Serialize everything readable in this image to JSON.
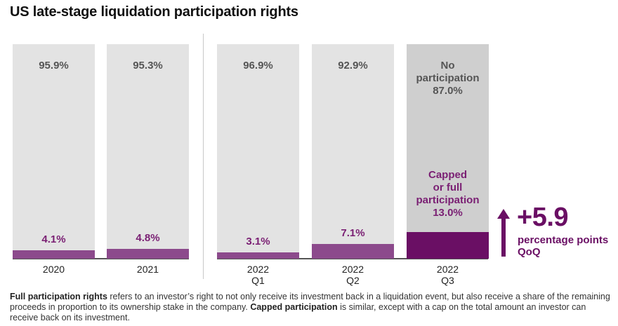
{
  "title": "US late-stage liquidation participation rights",
  "chart_data": {
    "type": "bar",
    "stacked": true,
    "categories": [
      "2020",
      "2021",
      "2022 Q1",
      "2022 Q2",
      "2022 Q3"
    ],
    "category_labels": [
      [
        "2020"
      ],
      [
        "2021"
      ],
      [
        "2022",
        "Q1"
      ],
      [
        "2022",
        "Q2"
      ],
      [
        "2022",
        "Q3"
      ]
    ],
    "ylim": [
      0,
      100
    ],
    "series": [
      {
        "name": "No participation",
        "values": [
          95.9,
          95.3,
          96.9,
          92.9,
          87.0
        ],
        "labels": [
          "95.9%",
          "95.3%",
          "96.9%",
          "92.9%",
          "87.0%"
        ]
      },
      {
        "name": "Capped or full participation",
        "values": [
          4.1,
          4.8,
          3.1,
          7.1,
          13.0
        ],
        "labels": [
          "4.1%",
          "4.8%",
          "3.1%",
          "7.1%",
          "13.0%"
        ]
      }
    ],
    "highlight_labels": {
      "no_participation": [
        "No",
        "participation"
      ],
      "capped": [
        "Capped",
        "or full",
        "participation"
      ]
    },
    "annotation": {
      "value": "+5.9",
      "text": [
        "percentage points",
        "QoQ"
      ]
    }
  },
  "colors": {
    "no_bg": "#e3e3e3",
    "no_bg_highlight": "#cfcfcf",
    "yes": "#8c4a8c",
    "yes_highlight": "#6a0f64"
  },
  "footnote": {
    "term1": "Full participation rights",
    "text1": " refers to an investor’s right to not only receive its investment back in a liquidation event, but also receive a share of the remaining proceeds in proportion to its ownership stake in the company. ",
    "term2": "Capped participation",
    "text2": " is similar, except with a cap on the total amount an investor can receive back on its investment."
  }
}
